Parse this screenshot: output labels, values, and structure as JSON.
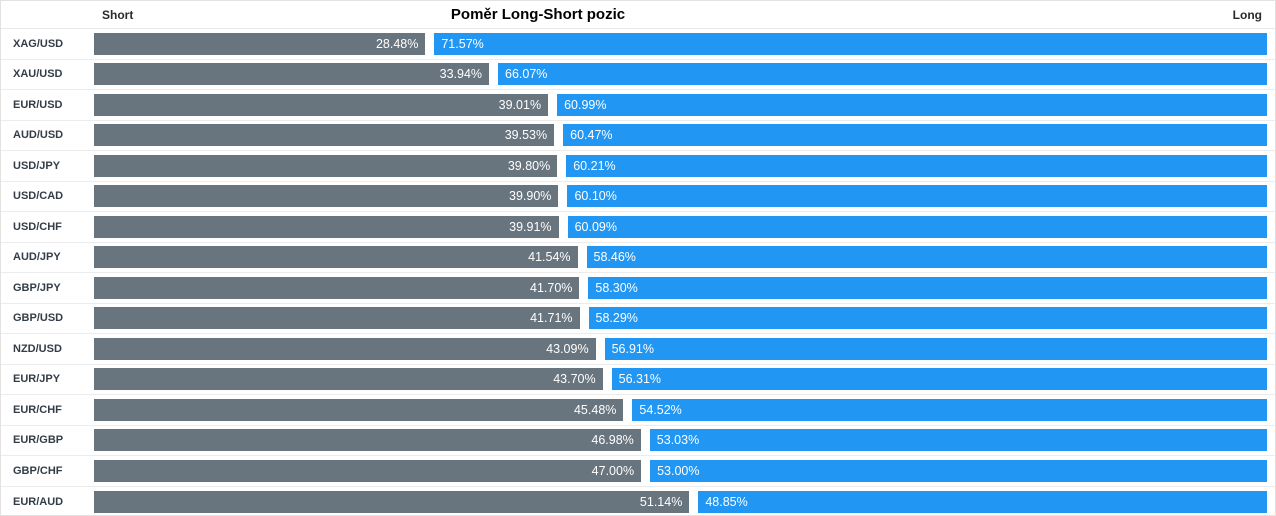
{
  "header": {
    "short_label": "Short",
    "title": "Poměr Long-Short pozic",
    "long_label": "Long"
  },
  "colors": {
    "short_bar": "#68747e",
    "long_bar": "#2196f3",
    "value_text": "#ffffff",
    "pair_label_text": "#333d47",
    "row_separator": "#ececec"
  },
  "chart_data": {
    "type": "bar",
    "orientation": "horizontal-stacked",
    "title": "Poměr Long-Short pozic",
    "legend": [
      "Short",
      "Long"
    ],
    "legend_position": "header-left-right",
    "grid": false,
    "xlim": [
      0,
      100
    ],
    "categories": [
      "XAG/USD",
      "XAU/USD",
      "EUR/USD",
      "AUD/USD",
      "USD/JPY",
      "USD/CAD",
      "USD/CHF",
      "AUD/JPY",
      "GBP/JPY",
      "GBP/USD",
      "NZD/USD",
      "EUR/JPY",
      "EUR/CHF",
      "EUR/GBP",
      "GBP/CHF",
      "EUR/AUD"
    ],
    "series": [
      {
        "name": "Short",
        "values": [
          28.48,
          33.94,
          39.01,
          39.53,
          39.8,
          39.9,
          39.91,
          41.54,
          41.7,
          41.71,
          43.09,
          43.7,
          45.48,
          46.98,
          47.0,
          51.14
        ]
      },
      {
        "name": "Long",
        "values": [
          71.57,
          66.07,
          60.99,
          60.47,
          60.21,
          60.1,
          60.09,
          58.46,
          58.3,
          58.29,
          56.91,
          56.31,
          54.52,
          53.03,
          53.0,
          48.85
        ]
      }
    ],
    "rows": [
      {
        "pair": "XAG/USD",
        "short_pct": 28.48,
        "long_pct": 71.57,
        "short_label": "28.48%",
        "long_label": "71.57%"
      },
      {
        "pair": "XAU/USD",
        "short_pct": 33.94,
        "long_pct": 66.07,
        "short_label": "33.94%",
        "long_label": "66.07%"
      },
      {
        "pair": "EUR/USD",
        "short_pct": 39.01,
        "long_pct": 60.99,
        "short_label": "39.01%",
        "long_label": "60.99%"
      },
      {
        "pair": "AUD/USD",
        "short_pct": 39.53,
        "long_pct": 60.47,
        "short_label": "39.53%",
        "long_label": "60.47%"
      },
      {
        "pair": "USD/JPY",
        "short_pct": 39.8,
        "long_pct": 60.21,
        "short_label": "39.80%",
        "long_label": "60.21%"
      },
      {
        "pair": "USD/CAD",
        "short_pct": 39.9,
        "long_pct": 60.1,
        "short_label": "39.90%",
        "long_label": "60.10%"
      },
      {
        "pair": "USD/CHF",
        "short_pct": 39.91,
        "long_pct": 60.09,
        "short_label": "39.91%",
        "long_label": "60.09%"
      },
      {
        "pair": "AUD/JPY",
        "short_pct": 41.54,
        "long_pct": 58.46,
        "short_label": "41.54%",
        "long_label": "58.46%"
      },
      {
        "pair": "GBP/JPY",
        "short_pct": 41.7,
        "long_pct": 58.3,
        "short_label": "41.70%",
        "long_label": "58.30%"
      },
      {
        "pair": "GBP/USD",
        "short_pct": 41.71,
        "long_pct": 58.29,
        "short_label": "41.71%",
        "long_label": "58.29%"
      },
      {
        "pair": "NZD/USD",
        "short_pct": 43.09,
        "long_pct": 56.91,
        "short_label": "43.09%",
        "long_label": "56.91%"
      },
      {
        "pair": "EUR/JPY",
        "short_pct": 43.7,
        "long_pct": 56.31,
        "short_label": "43.70%",
        "long_label": "56.31%"
      },
      {
        "pair": "EUR/CHF",
        "short_pct": 45.48,
        "long_pct": 54.52,
        "short_label": "45.48%",
        "long_label": "54.52%"
      },
      {
        "pair": "EUR/GBP",
        "short_pct": 46.98,
        "long_pct": 53.03,
        "short_label": "46.98%",
        "long_label": "53.03%"
      },
      {
        "pair": "GBP/CHF",
        "short_pct": 47.0,
        "long_pct": 53.0,
        "short_label": "47.00%",
        "long_label": "53.00%"
      },
      {
        "pair": "EUR/AUD",
        "short_pct": 51.14,
        "long_pct": 48.85,
        "short_label": "51.14%",
        "long_label": "48.85%"
      }
    ]
  }
}
